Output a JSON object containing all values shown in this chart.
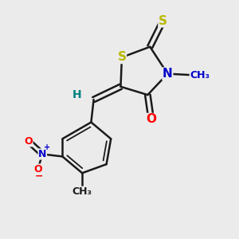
{
  "background_color": "#ebebeb",
  "atom_colors": {
    "S": "#b8b800",
    "N": "#0000cc",
    "O": "#ff0000",
    "C": "#1a1a1a",
    "H": "#008080"
  },
  "bond_color": "#1a1a1a",
  "bond_lw": 1.8,
  "double_inner_lw": 1.3
}
